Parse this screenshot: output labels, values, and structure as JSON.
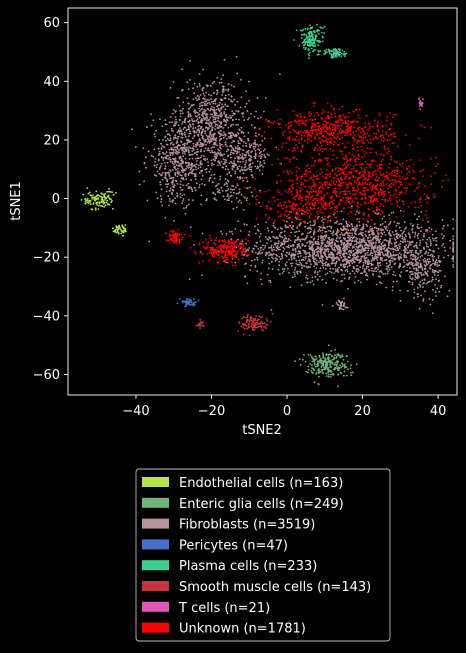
{
  "chart_data": {
    "type": "scatter",
    "xlabel": "tSNE2",
    "ylabel": "tSNE1",
    "xlim": [
      -58,
      45
    ],
    "ylim": [
      -67,
      65
    ],
    "xticks": [
      -40,
      -20,
      0,
      20,
      40
    ],
    "yticks": [
      -60,
      -40,
      -20,
      0,
      20,
      40,
      60
    ],
    "grid": false,
    "legend_position": "bottom-center",
    "background": "#000000",
    "series": [
      {
        "name": "Endothelial cells (n=163)",
        "color": "#b5e44d",
        "count": 163,
        "clusters": [
          {
            "cx": -50,
            "cy": -0.5,
            "sx": 2.0,
            "sy": 1.6,
            "w": 0.72
          },
          {
            "cx": -44,
            "cy": -10.5,
            "sx": 1.0,
            "sy": 1.0,
            "w": 0.28
          }
        ]
      },
      {
        "name": "Enteric glia cells (n=249)",
        "color": "#6fb57a",
        "count": 249,
        "clusters": [
          {
            "cx": 10.5,
            "cy": -56.5,
            "sx": 3.0,
            "sy": 2.2,
            "w": 1.0
          }
        ]
      },
      {
        "name": "Fibroblasts (n=3519)",
        "color": "#b7939e",
        "count": 3519,
        "clusters": [
          {
            "cx": 16,
            "cy": -17,
            "sx": 13,
            "sy": 5,
            "w": 0.52
          },
          {
            "cx": -20,
            "cy": 25,
            "sx": 5,
            "sy": 8,
            "w": 0.2
          },
          {
            "cx": -29,
            "cy": 12,
            "sx": 4,
            "sy": 7,
            "w": 0.13
          },
          {
            "cx": -12,
            "cy": 14,
            "sx": 4,
            "sy": 4,
            "w": 0.07
          },
          {
            "cx": 36,
            "cy": -25,
            "sx": 2.5,
            "sy": 4,
            "w": 0.05
          },
          {
            "cx": 14,
            "cy": -36,
            "sx": 1,
            "sy": 1,
            "w": 0.01
          },
          {
            "cx": -15,
            "cy": 2,
            "sx": 3,
            "sy": 3,
            "w": 0.02
          }
        ]
      },
      {
        "name": "Pericytes (n=47)",
        "color": "#4a6fc9",
        "count": 47,
        "clusters": [
          {
            "cx": -26,
            "cy": -35.5,
            "sx": 1.0,
            "sy": 0.7,
            "w": 1.0
          }
        ]
      },
      {
        "name": "Plasma cells (n=233)",
        "color": "#3fcf8e",
        "count": 233,
        "clusters": [
          {
            "cx": 6.5,
            "cy": 54.5,
            "sx": 1.6,
            "sy": 2.4,
            "w": 0.7
          },
          {
            "cx": 13,
            "cy": 49.5,
            "sx": 1.5,
            "sy": 0.8,
            "w": 0.3
          }
        ]
      },
      {
        "name": "Smooth muscle cells (n=143)",
        "color": "#c73440",
        "count": 143,
        "clusters": [
          {
            "cx": -8.5,
            "cy": -42.5,
            "sx": 2.0,
            "sy": 1.5,
            "w": 0.85
          },
          {
            "cx": -23,
            "cy": -43,
            "sx": 0.6,
            "sy": 0.6,
            "w": 0.15
          }
        ]
      },
      {
        "name": "T cells (n=21)",
        "color": "#e055b6",
        "count": 21,
        "clusters": [
          {
            "cx": 35.5,
            "cy": 32.5,
            "sx": 0.3,
            "sy": 0.8,
            "w": 1.0
          }
        ]
      },
      {
        "name": "Unknown (n=1781)",
        "color": "#ff0000",
        "count": 1781,
        "clusters": [
          {
            "cx": 12,
            "cy": 23,
            "sx": 8,
            "sy": 3.5,
            "w": 0.28
          },
          {
            "cx": 18,
            "cy": 5,
            "sx": 10,
            "sy": 6,
            "w": 0.45
          },
          {
            "cx": -16,
            "cy": -17.5,
            "sx": 3,
            "sy": 2.2,
            "w": 0.13
          },
          {
            "cx": 4,
            "cy": -2,
            "sx": 5,
            "sy": 3,
            "w": 0.1
          },
          {
            "cx": -30,
            "cy": -13,
            "sx": 1,
            "sy": 1,
            "w": 0.04
          }
        ]
      }
    ]
  }
}
